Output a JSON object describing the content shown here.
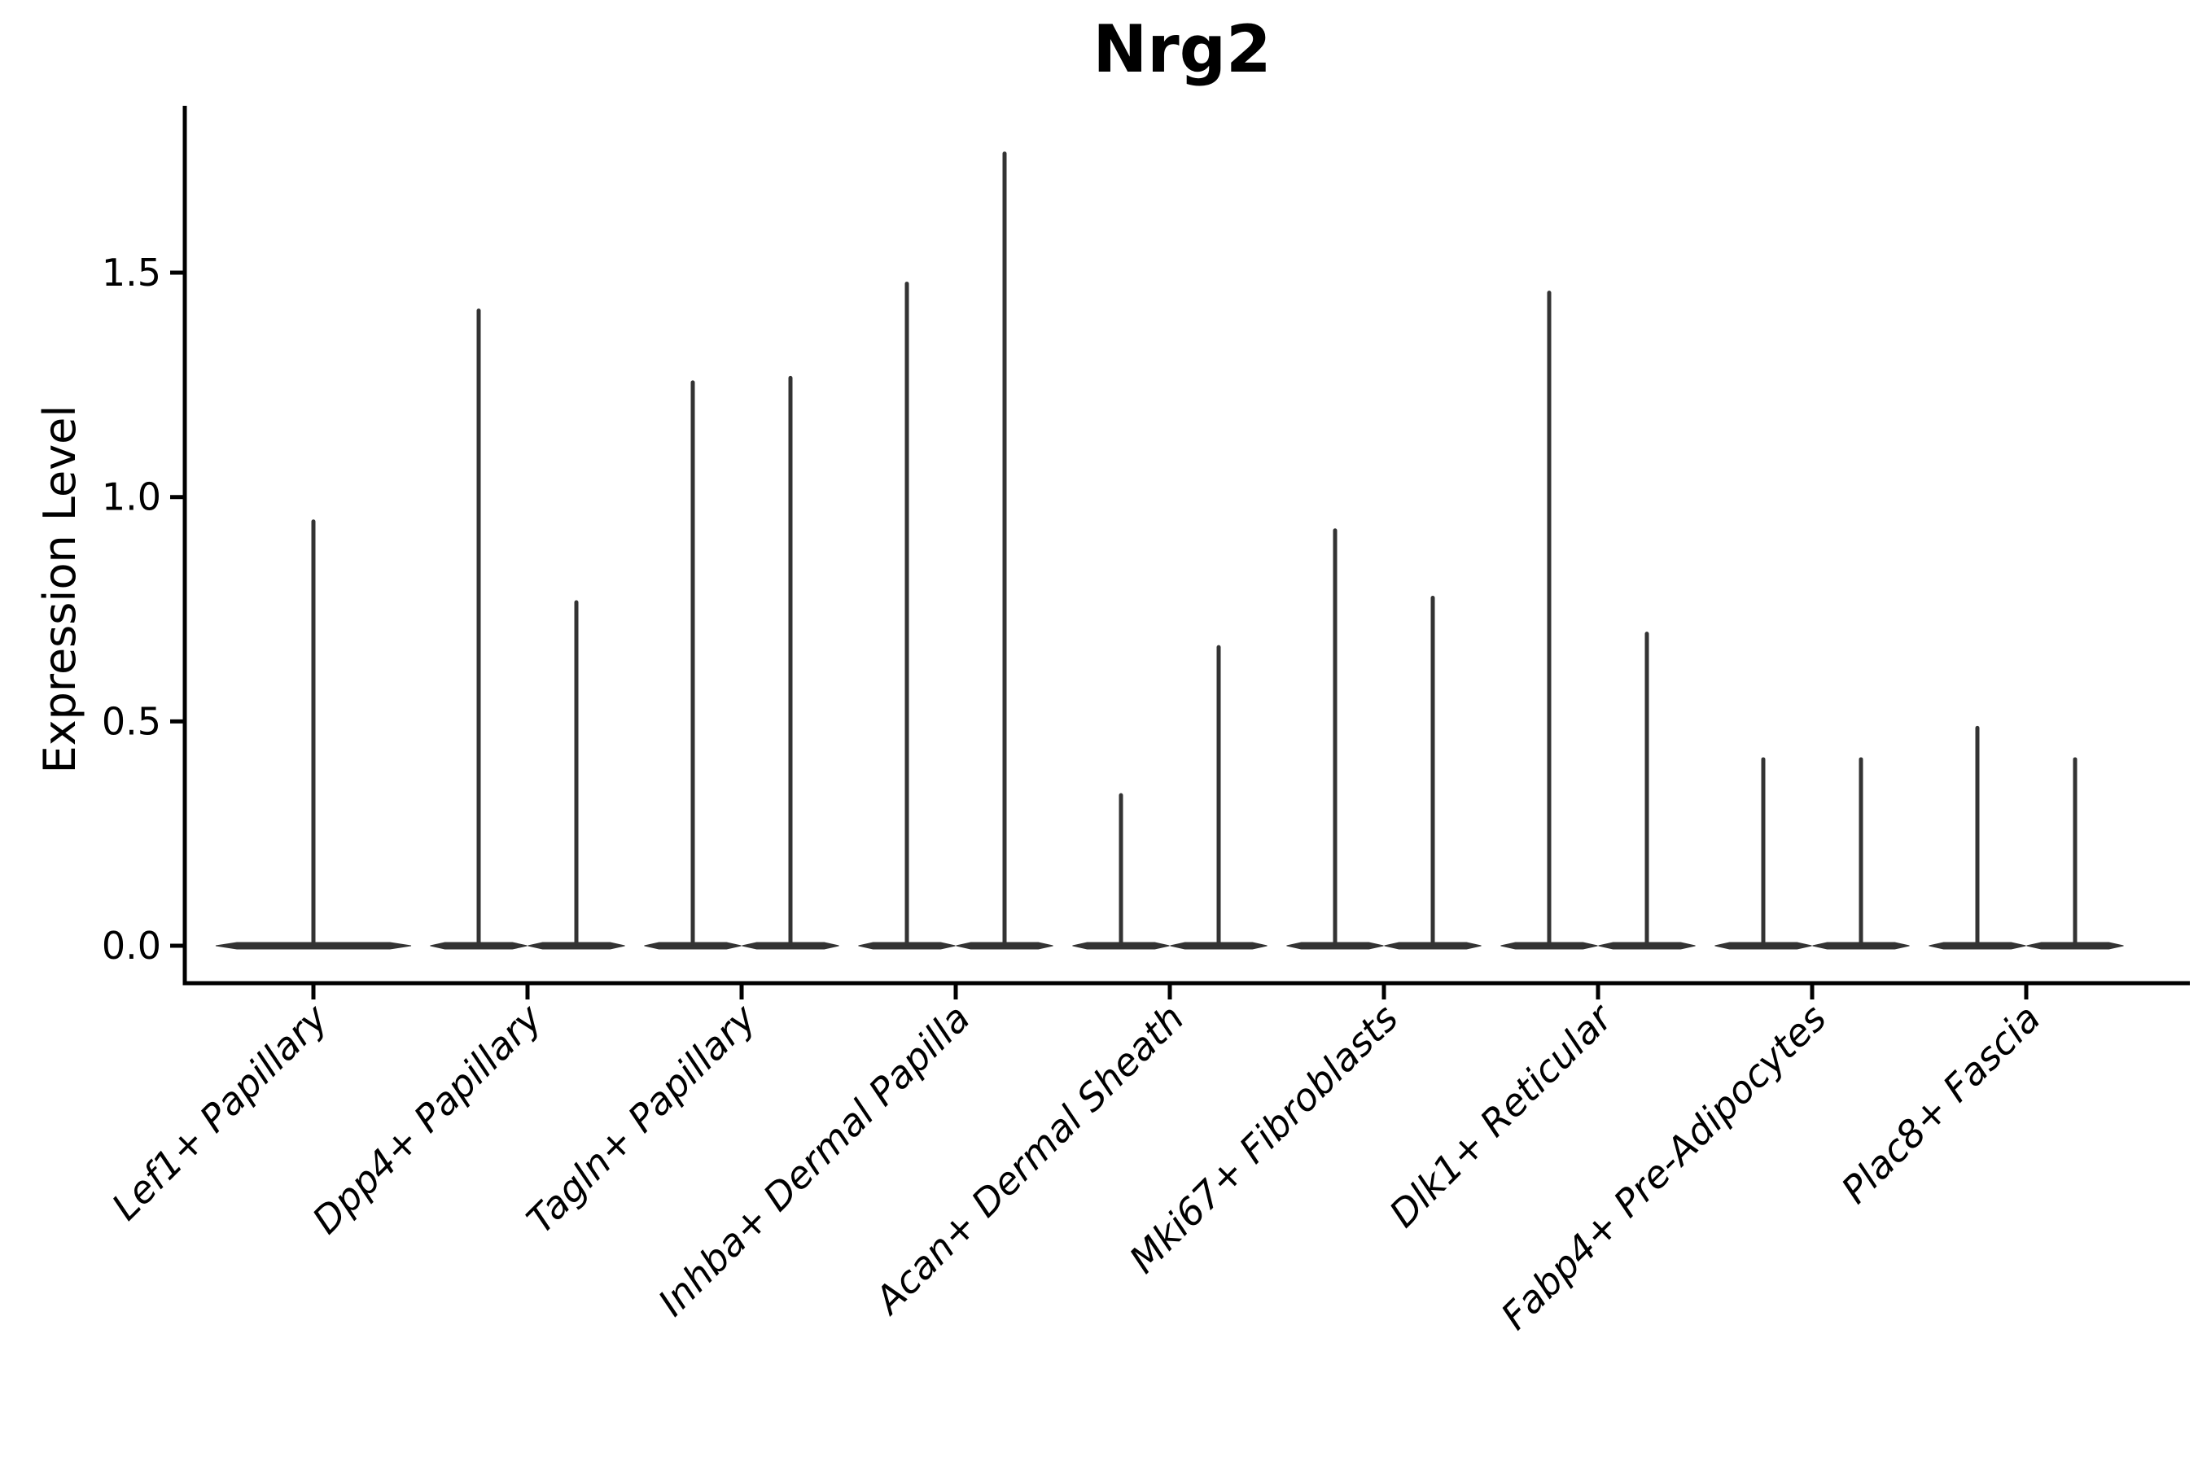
{
  "chart_data": {
    "type": "violin",
    "title": "Nrg2",
    "ylabel": "Expression Level",
    "xlabel": "",
    "yticks": [
      0.0,
      0.5,
      1.0,
      1.5
    ],
    "ylim": [
      0,
      1.87
    ],
    "grid": false,
    "legend": "none",
    "categories": [
      "Lef1+ Papillary",
      "Dpp4+ Papillary",
      "Tagln+ Papillary",
      "Inhba+ Dermal Papilla",
      "Acan+ Dermal Sheath",
      "Mki67+ Fibroblasts",
      "Dlk1+ Reticular",
      "Fabp4+ Pre-Adipocytes",
      "Plac8+ Fascia"
    ],
    "violins": [
      {
        "category": "Lef1+ Papillary",
        "max_values": [
          0.95
        ]
      },
      {
        "category": "Dpp4+ Papillary",
        "max_values": [
          1.42,
          0.77
        ]
      },
      {
        "category": "Tagln+ Papillary",
        "max_values": [
          1.26,
          1.27
        ]
      },
      {
        "category": "Inhba+ Dermal Papilla",
        "max_values": [
          1.48,
          1.77
        ]
      },
      {
        "category": "Acan+ Dermal Sheath",
        "max_values": [
          0.34,
          0.67
        ]
      },
      {
        "category": "Mki67+ Fibroblasts",
        "max_values": [
          0.93,
          0.78
        ]
      },
      {
        "category": "Dlk1+ Reticular",
        "max_values": [
          1.46,
          0.7
        ]
      },
      {
        "category": "Fabp4+ Pre-Adipocytes",
        "max_values": [
          0.42,
          0.42
        ]
      },
      {
        "category": "Plac8+ Fascia",
        "max_values": [
          0.49,
          0.42
        ]
      }
    ],
    "bulk_expression_at_zero": true,
    "colors": {
      "violin": "#333333",
      "axis": "#000000",
      "text": "#000000",
      "background": "#ffffff"
    }
  }
}
